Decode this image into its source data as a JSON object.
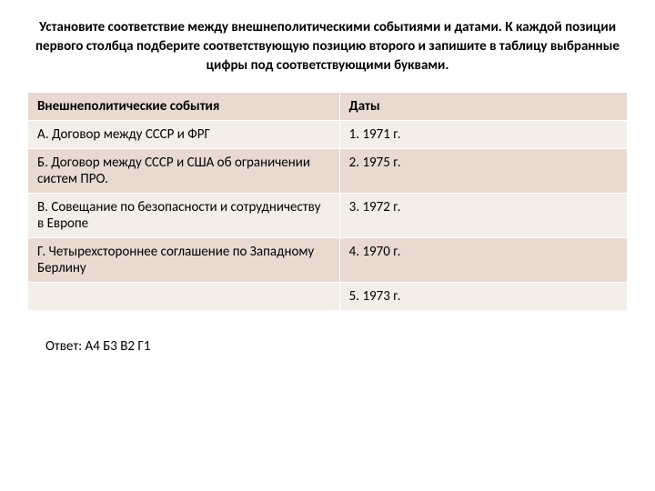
{
  "title": "Установите соответствие между внешнеполитическими событиями и датами. К каждой позиции первого столбца подберите соответствующую позицию второго и запишите в таблицу выбранные цифры под соответствующими буквами.",
  "table": {
    "header": {
      "col1": "Внешнеполитические события",
      "col2": "Даты"
    },
    "rows": [
      {
        "col1": "А. Договор между СССР и ФРГ",
        "col2": "1. 1971 г."
      },
      {
        "col1": "Б. Договор между СССР и США об ограничении систем ПРО.",
        "col2": "2. 1975 г."
      },
      {
        "col1": "В. Совещание по безопасности и сотрудничеству в Европе",
        "col2": "3. 1972 г."
      },
      {
        "col1": "Г. Четырехстороннее соглашение по Западному Берлину",
        "col2": "4. 1970 г."
      },
      {
        "col1": "",
        "col2": "5. 1973 г."
      }
    ],
    "colors": {
      "header_bg": "#e8dad1",
      "row_even_bg": "#f4eee9",
      "row_odd_bg": "#e8dad1",
      "border": "#ffffff",
      "text": "#000000"
    },
    "column_widths": {
      "left_percent": 52,
      "right_percent": 48
    },
    "title_fontsize": 15,
    "cell_fontsize": 15
  },
  "answer": "Ответ: А4 Б3 В2 Г1"
}
